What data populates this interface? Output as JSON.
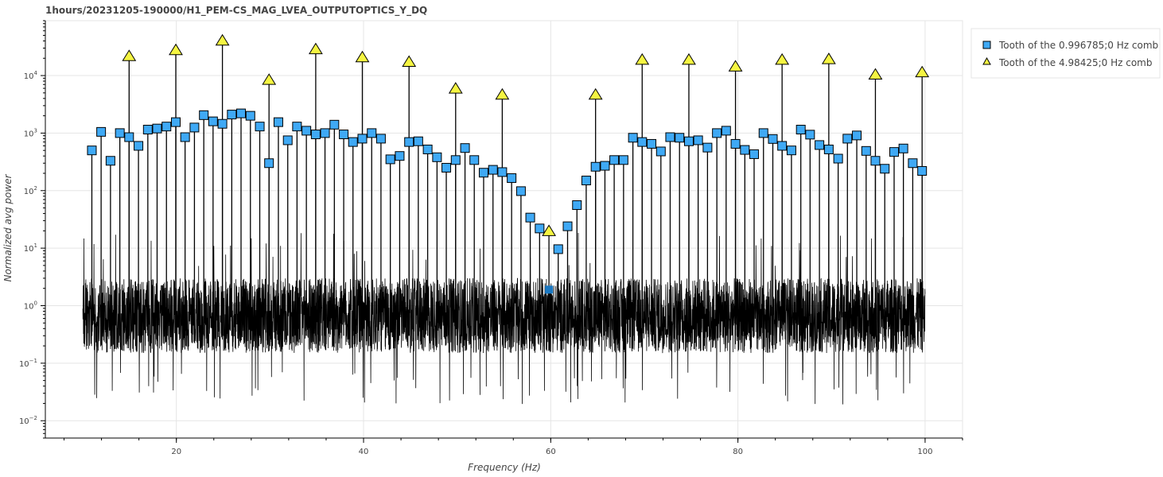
{
  "chart_data": {
    "type": "scatter",
    "title": "1hours/20231205-190000/H1_PEM-CS_MAG_LVEA_OUTPUTOPTICS_Y_DQ",
    "xlabel": "Frequency (Hz)",
    "ylabel": "Normalized avg power",
    "xlim": [
      6,
      104
    ],
    "ylim": [
      0.005,
      90000
    ],
    "yscale": "log",
    "grid": true,
    "legend_position": "top-right-outside",
    "x_ticks": [
      {
        "value": 20,
        "label": "20"
      },
      {
        "value": 40,
        "label": "40"
      },
      {
        "value": 60,
        "label": "60"
      },
      {
        "value": 80,
        "label": "80"
      },
      {
        "value": 100,
        "label": "100"
      }
    ],
    "y_ticks": [
      {
        "value": 0.01,
        "base": "10",
        "exp": "−2"
      },
      {
        "value": 0.1,
        "base": "10",
        "exp": "−1"
      },
      {
        "value": 1,
        "base": "10",
        "exp": "0"
      },
      {
        "value": 10,
        "base": "10",
        "exp": "1"
      },
      {
        "value": 100,
        "base": "10",
        "exp": "2"
      },
      {
        "value": 1000,
        "base": "10",
        "exp": "3"
      },
      {
        "value": 10000,
        "base": "10",
        "exp": "4"
      }
    ],
    "background_spectrum": {
      "x_range": [
        10,
        100
      ],
      "typical_range": [
        0.15,
        3
      ],
      "color": "#000000"
    },
    "series": [
      {
        "name": "Tooth of the 0.996785;0 Hz comb",
        "marker": "square",
        "color": "#3fa9f5",
        "x": [
          10.97,
          11.96,
          12.96,
          13.96,
          14.95,
          15.95,
          16.95,
          17.94,
          18.94,
          19.94,
          20.93,
          21.93,
          22.93,
          23.92,
          24.92,
          25.92,
          26.91,
          27.91,
          28.91,
          29.9,
          30.9,
          31.9,
          32.89,
          33.89,
          34.89,
          35.88,
          36.88,
          37.88,
          38.87,
          39.87,
          40.87,
          41.86,
          42.86,
          43.86,
          44.86,
          45.85,
          46.85,
          47.85,
          48.84,
          49.84,
          50.84,
          51.83,
          52.83,
          53.83,
          54.82,
          55.82,
          56.82,
          57.81,
          58.81,
          59.81,
          60.8,
          61.8,
          62.8,
          63.79,
          64.79,
          65.79,
          66.78,
          67.78,
          68.78,
          69.77,
          70.77,
          71.77,
          72.76,
          73.76,
          74.76,
          75.75,
          76.75,
          77.75,
          78.74,
          79.74,
          80.74,
          81.73,
          82.73,
          83.73,
          84.72,
          85.72,
          86.72,
          87.71,
          88.71,
          89.71,
          90.71,
          91.7,
          92.7,
          93.7,
          94.69,
          95.69,
          96.69,
          97.68,
          98.68,
          99.68
        ],
        "y": [
          500,
          1050,
          330,
          1000,
          850,
          600,
          1150,
          1200,
          1300,
          1550,
          850,
          1250,
          2050,
          1600,
          1450,
          2100,
          2200,
          2000,
          1300,
          300,
          1550,
          750,
          1300,
          1100,
          950,
          1000,
          1400,
          950,
          700,
          800,
          1000,
          800,
          350,
          400,
          700,
          720,
          520,
          380,
          250,
          340,
          550,
          340,
          205,
          230,
          210,
          165,
          98,
          34,
          22,
          1.9,
          9.6,
          24,
          56,
          150,
          260,
          270,
          340,
          340,
          830,
          700,
          650,
          480,
          850,
          830,
          720,
          750,
          560,
          1000,
          1100,
          650,
          510,
          430,
          1000,
          790,
          600,
          500,
          1150,
          940,
          620,
          520,
          360,
          800,
          910,
          490,
          330,
          240,
          470,
          540,
          300,
          220
        ]
      },
      {
        "name": "Tooth of the 4.98425;0 Hz comb",
        "marker": "triangle",
        "color": "#f5f542",
        "x": [
          14.95,
          19.94,
          24.92,
          29.9,
          34.89,
          39.87,
          44.86,
          49.84,
          54.82,
          59.81,
          64.79,
          69.77,
          74.76,
          79.74,
          84.72,
          89.71,
          94.69,
          99.68
        ],
        "y": [
          22000,
          28000,
          41000,
          8500,
          29000,
          21000,
          17500,
          6000,
          4700,
          20,
          4700,
          19000,
          19000,
          14500,
          19000,
          19500,
          10500,
          11500
        ]
      }
    ]
  }
}
